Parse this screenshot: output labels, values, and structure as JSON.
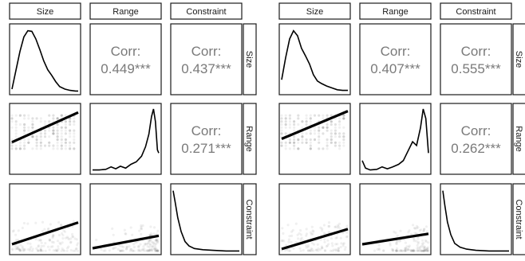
{
  "chart_data": [
    {
      "type": "scatterplot-matrix",
      "variables": [
        "Size",
        "Range",
        "Constraint"
      ],
      "correlations": {
        "size_range": {
          "label": "Corr:",
          "value": "0.449***"
        },
        "size_constraint": {
          "label": "Corr:",
          "value": "0.437***"
        },
        "range_constraint": {
          "label": "Corr:",
          "value": "0.271***"
        }
      },
      "density": {
        "size": [
          [
            0,
            0.05
          ],
          [
            0.06,
            0.35
          ],
          [
            0.12,
            0.65
          ],
          [
            0.18,
            0.88
          ],
          [
            0.24,
            0.98
          ],
          [
            0.3,
            0.97
          ],
          [
            0.36,
            0.85
          ],
          [
            0.42,
            0.68
          ],
          [
            0.48,
            0.5
          ],
          [
            0.54,
            0.36
          ],
          [
            0.6,
            0.27
          ],
          [
            0.66,
            0.17
          ],
          [
            0.72,
            0.09
          ],
          [
            0.8,
            0.05
          ],
          [
            0.88,
            0.03
          ],
          [
            0.96,
            0.02
          ],
          [
            1,
            0.02
          ]
        ],
        "range": [
          [
            0,
            0.03
          ],
          [
            0.1,
            0.03
          ],
          [
            0.2,
            0.04
          ],
          [
            0.28,
            0.08
          ],
          [
            0.35,
            0.05
          ],
          [
            0.42,
            0.09
          ],
          [
            0.5,
            0.06
          ],
          [
            0.58,
            0.12
          ],
          [
            0.66,
            0.16
          ],
          [
            0.74,
            0.25
          ],
          [
            0.8,
            0.4
          ],
          [
            0.85,
            0.6
          ],
          [
            0.89,
            0.88
          ],
          [
            0.92,
            1.0
          ],
          [
            0.95,
            0.8
          ],
          [
            0.98,
            0.35
          ],
          [
            1,
            0.3
          ]
        ],
        "constraint": [
          [
            0,
            0.98
          ],
          [
            0.03,
            0.8
          ],
          [
            0.07,
            0.55
          ],
          [
            0.12,
            0.33
          ],
          [
            0.18,
            0.17
          ],
          [
            0.24,
            0.1
          ],
          [
            0.32,
            0.06
          ],
          [
            0.45,
            0.04
          ],
          [
            0.6,
            0.03
          ],
          [
            0.8,
            0.02
          ],
          [
            1,
            0.02
          ]
        ]
      },
      "trend": {
        "range_vs_size": [
          [
            0,
            0.45
          ],
          [
            1,
            0.9
          ]
        ],
        "constraint_vs_size": [
          [
            0,
            0.12
          ],
          [
            1,
            0.45
          ]
        ],
        "constraint_vs_range": [
          [
            0,
            0.06
          ],
          [
            1,
            0.25
          ]
        ]
      }
    },
    {
      "type": "scatterplot-matrix",
      "variables": [
        "Size",
        "Range",
        "Constraint"
      ],
      "correlations": {
        "size_range": {
          "label": "Corr:",
          "value": "0.407***"
        },
        "size_constraint": {
          "label": "Corr:",
          "value": "0.555***"
        },
        "range_constraint": {
          "label": "Corr:",
          "value": "0.262***"
        }
      },
      "density": {
        "size": [
          [
            0,
            0.2
          ],
          [
            0.06,
            0.55
          ],
          [
            0.12,
            0.85
          ],
          [
            0.18,
            0.98
          ],
          [
            0.24,
            0.9
          ],
          [
            0.3,
            0.7
          ],
          [
            0.36,
            0.58
          ],
          [
            0.42,
            0.45
          ],
          [
            0.48,
            0.28
          ],
          [
            0.54,
            0.18
          ],
          [
            0.6,
            0.14
          ],
          [
            0.68,
            0.1
          ],
          [
            0.76,
            0.07
          ],
          [
            0.84,
            0.04
          ],
          [
            0.92,
            0.03
          ],
          [
            1,
            0.03
          ]
        ],
        "range": [
          [
            0,
            0.18
          ],
          [
            0.05,
            0.06
          ],
          [
            0.12,
            0.03
          ],
          [
            0.22,
            0.04
          ],
          [
            0.3,
            0.08
          ],
          [
            0.38,
            0.05
          ],
          [
            0.46,
            0.08
          ],
          [
            0.55,
            0.12
          ],
          [
            0.62,
            0.18
          ],
          [
            0.7,
            0.35
          ],
          [
            0.76,
            0.48
          ],
          [
            0.82,
            0.42
          ],
          [
            0.88,
            0.7
          ],
          [
            0.92,
            1.0
          ],
          [
            0.96,
            0.85
          ],
          [
            1,
            0.3
          ]
        ],
        "constraint": [
          [
            0,
            0.98
          ],
          [
            0.03,
            0.75
          ],
          [
            0.07,
            0.48
          ],
          [
            0.12,
            0.28
          ],
          [
            0.18,
            0.14
          ],
          [
            0.26,
            0.08
          ],
          [
            0.36,
            0.05
          ],
          [
            0.5,
            0.03
          ],
          [
            0.7,
            0.02
          ],
          [
            1,
            0.02
          ]
        ]
      },
      "trend": {
        "range_vs_size": [
          [
            0,
            0.5
          ],
          [
            1,
            0.92
          ]
        ],
        "constraint_vs_size": [
          [
            0,
            0.05
          ],
          [
            1,
            0.35
          ]
        ],
        "constraint_vs_range": [
          [
            0,
            0.12
          ],
          [
            1,
            0.28
          ]
        ]
      }
    }
  ]
}
